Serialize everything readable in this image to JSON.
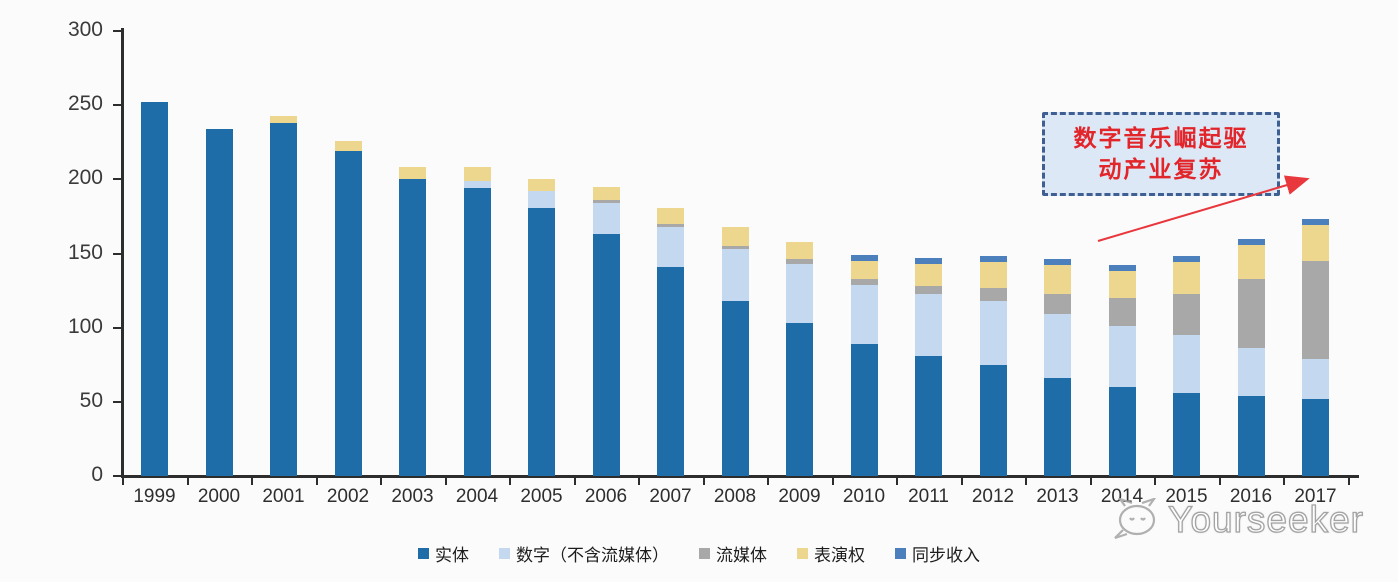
{
  "chart_data": {
    "type": "bar",
    "stacked": true,
    "title": "",
    "xlabel": "",
    "ylabel": "",
    "ylim": [
      0,
      300
    ],
    "ytick_step": 50,
    "grid": false,
    "legend_position": "bottom",
    "categories": [
      "1999",
      "2000",
      "2001",
      "2002",
      "2003",
      "2004",
      "2005",
      "2006",
      "2007",
      "2008",
      "2009",
      "2010",
      "2011",
      "2012",
      "2013",
      "2014",
      "2015",
      "2016",
      "2017"
    ],
    "series": [
      {
        "key": "physical",
        "name": "实体",
        "color": "#1e6ca8",
        "values": [
          252,
          234,
          238,
          219,
          200,
          194,
          181,
          163,
          141,
          118,
          103,
          89,
          81,
          75,
          66,
          60,
          56,
          54,
          52
        ]
      },
      {
        "key": "digital-excl-streaming",
        "name": "数字（不含流媒体）",
        "color": "#c4d9f0",
        "values": [
          0,
          0,
          0,
          0,
          0,
          5,
          11,
          21,
          27,
          35,
          40,
          40,
          42,
          43,
          43,
          41,
          39,
          32,
          27
        ]
      },
      {
        "key": "streaming",
        "name": "流媒体",
        "color": "#a8a8a8",
        "values": [
          0,
          0,
          0,
          0,
          0,
          0,
          0,
          2,
          2,
          2,
          3,
          4,
          5,
          9,
          14,
          19,
          28,
          47,
          66
        ]
      },
      {
        "key": "performance-rights",
        "name": "表演权",
        "color": "#edd78f",
        "values": [
          0,
          0,
          5,
          7,
          8,
          9,
          8,
          9,
          11,
          13,
          12,
          12,
          15,
          17,
          19,
          18,
          21,
          23,
          24
        ]
      },
      {
        "key": "sync-revenue",
        "name": "同步收入",
        "color": "#4b80bd",
        "values": [
          0,
          0,
          0,
          0,
          0,
          0,
          0,
          0,
          0,
          0,
          0,
          4,
          4,
          4,
          4,
          4,
          4,
          4,
          4
        ]
      }
    ]
  },
  "annotation": {
    "line1": "数字音乐崛起驱",
    "line2": "动产业复苏",
    "text_color": "#e2252b",
    "box_fill": "#dce8f5",
    "box_border": "#3f5e92",
    "arrow_color": "#e8373d"
  },
  "watermark": {
    "label": "Yourseeker"
  },
  "axis": {
    "line_color": "#2d2d2d",
    "label_color": "#3a3a3a"
  }
}
